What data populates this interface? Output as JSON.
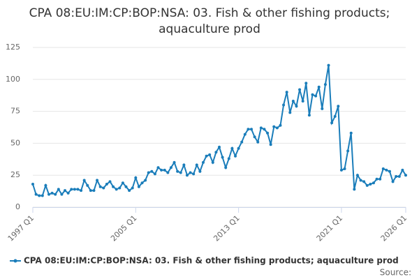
{
  "chart_data": {
    "type": "line",
    "title": "CPA 08:EU:IM:CP:BOP:NSA: 03. Fish & other fishing products; aquaculture prod",
    "categories": [
      "1997 Q1",
      null,
      null,
      null,
      null,
      null,
      null,
      null,
      null,
      null,
      null,
      null,
      null,
      null,
      null,
      null,
      null,
      null,
      null,
      null,
      null,
      null,
      null,
      null,
      null,
      null,
      null,
      null,
      null,
      null,
      null,
      null,
      "2005 Q1",
      null,
      null,
      null,
      null,
      null,
      null,
      null,
      null,
      null,
      null,
      null,
      null,
      null,
      null,
      null,
      null,
      null,
      null,
      null,
      null,
      null,
      null,
      null,
      null,
      null,
      null,
      null,
      null,
      null,
      null,
      null,
      "2013 Q1",
      null,
      null,
      null,
      null,
      null,
      null,
      null,
      null,
      null,
      null,
      null,
      null,
      null,
      null,
      null,
      null,
      null,
      null,
      null,
      null,
      null,
      null,
      null,
      null,
      null,
      null,
      null,
      null,
      null,
      null,
      null,
      "2021 Q1",
      null,
      null,
      null,
      null,
      null,
      null,
      null,
      null,
      null,
      null,
      null,
      null,
      null,
      null,
      null,
      null,
      null,
      null,
      null,
      "2026 Q1"
    ],
    "series": [
      {
        "name": "CPA 08:EU:IM:CP:BOP:NSA: 03. Fish & other fishing products; aquaculture prod",
        "color": "#1a7dba",
        "values": [
          18,
          10,
          9,
          9,
          17,
          10,
          11,
          10,
          14,
          10,
          13,
          11,
          14,
          14,
          14,
          13,
          21,
          17,
          13,
          13,
          21,
          16,
          15,
          18,
          20,
          16,
          14,
          15,
          19,
          16,
          13,
          15,
          23,
          16,
          19,
          21,
          27,
          28,
          26,
          31,
          29,
          29,
          27,
          31,
          35,
          28,
          27,
          33,
          25,
          27,
          26,
          33,
          28,
          35,
          40,
          41,
          35,
          43,
          47,
          39,
          31,
          38,
          46,
          40,
          46,
          51,
          57,
          61,
          61,
          55,
          51,
          62,
          61,
          58,
          49,
          63,
          62,
          64,
          80,
          90,
          74,
          83,
          79,
          92,
          83,
          97,
          72,
          88,
          87,
          94,
          77,
          96,
          111,
          66,
          71,
          79,
          29,
          30,
          44,
          58,
          14,
          25,
          21,
          20,
          17,
          18,
          19,
          22,
          22,
          30,
          29,
          28,
          20,
          24,
          24,
          29,
          25
        ]
      }
    ],
    "ylim": [
      0,
      125
    ],
    "yticks": [
      0,
      25,
      50,
      75,
      100,
      125
    ],
    "grid": true,
    "source_label": "Source:"
  }
}
